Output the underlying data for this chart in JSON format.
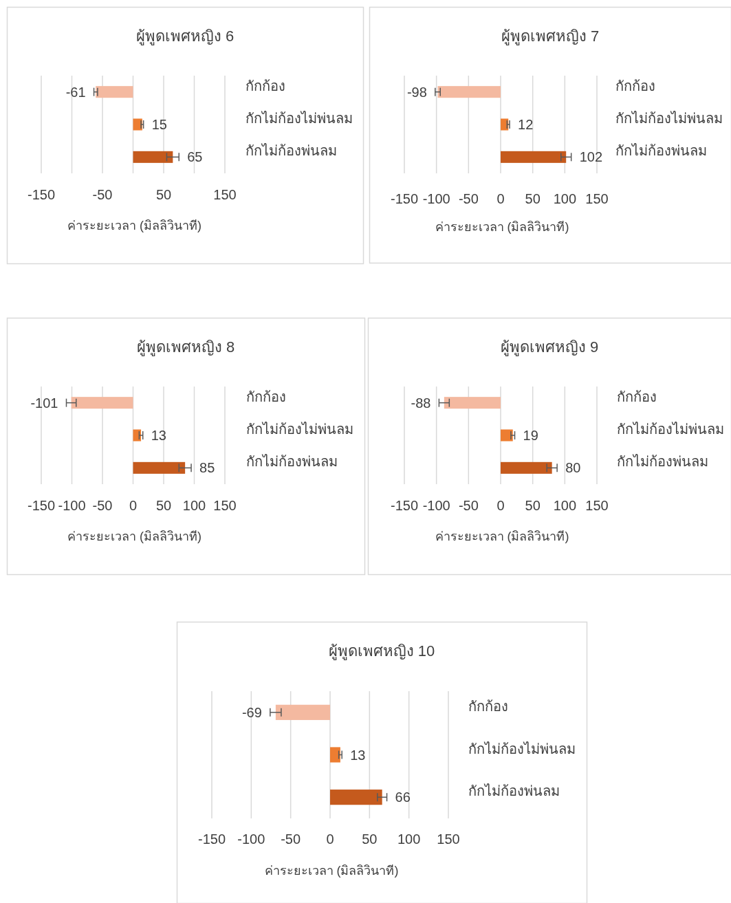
{
  "chart_data": [
    {
      "type": "bar",
      "orientation": "horizontal",
      "title": "ผู้พูดเพศหญิง 6",
      "xlabel": "ค่าระยะเวลา (มิลลิวินาที)",
      "categories": [
        "กักก้อง",
        "กักไม่ก้องไม่พ่นลม",
        "กักไม่ก้องพ่นลม"
      ],
      "values": [
        -61,
        15,
        65
      ],
      "errors": [
        3,
        2,
        10
      ],
      "colors": [
        "#f4b9a0",
        "#ed7d31",
        "#c55a1d"
      ],
      "xlim": [
        -150,
        150
      ],
      "xticks": [
        -150,
        {
          "value": -100,
          "label": null
        },
        -50,
        {
          "value": 0,
          "label": null
        },
        50,
        {
          "value": 100,
          "label": null
        },
        150
      ],
      "grid": "x",
      "data_labels": true
    },
    {
      "type": "bar",
      "orientation": "horizontal",
      "title": "ผู้พูดเพศหญิง 7",
      "xlabel": "ค่าระยะเวลา (มิลลิวินาที)",
      "categories": [
        "กักก้อง",
        "กักไม่ก้องไม่พ่นลม",
        "กักไม่ก้องพ่นลม"
      ],
      "values": [
        -98,
        12,
        102
      ],
      "errors": [
        4,
        2,
        8
      ],
      "colors": [
        "#f4b9a0",
        "#ed7d31",
        "#c55a1d"
      ],
      "xlim": [
        -150,
        150
      ],
      "xticks": [
        -150,
        -100,
        -50,
        0,
        50,
        100,
        150
      ],
      "grid": "x",
      "data_labels": true
    },
    {
      "type": "bar",
      "orientation": "horizontal",
      "title": "ผู้พูดเพศหญิง 8",
      "xlabel": "ค่าระยะเวลา (มิลลิวินาที)",
      "categories": [
        "กักก้อง",
        "กักไม่ก้องไม่พ่นลม",
        "กักไม่ก้องพ่นลม"
      ],
      "values": [
        -101,
        13,
        85
      ],
      "errors": [
        8,
        3,
        10
      ],
      "colors": [
        "#f4b9a0",
        "#ed7d31",
        "#c55a1d"
      ],
      "xlim": [
        -150,
        150
      ],
      "xticks": [
        -150,
        -100,
        -50,
        0,
        50,
        100,
        150
      ],
      "grid": "x",
      "data_labels": true
    },
    {
      "type": "bar",
      "orientation": "horizontal",
      "title": "ผู้พูดเพศหญิง 9",
      "xlabel": "ค่าระยะเวลา (มิลลิวินาที)",
      "categories": [
        "กักก้อง",
        "กักไม่ก้องไม่พ่นลม",
        "กักไม่ก้องพ่นลม"
      ],
      "values": [
        -88,
        19,
        80
      ],
      "errors": [
        8,
        3,
        8
      ],
      "colors": [
        "#f4b9a0",
        "#ed7d31",
        "#c55a1d"
      ],
      "xlim": [
        -150,
        150
      ],
      "xticks": [
        -150,
        -100,
        -50,
        0,
        50,
        100,
        150
      ],
      "grid": "x",
      "data_labels": true
    },
    {
      "type": "bar",
      "orientation": "horizontal",
      "title": "ผู้พูดเพศหญิง 10",
      "xlabel": "ค่าระยะเวลา (มิลลิวินาที)",
      "categories": [
        "กักก้อง",
        "กักไม่ก้องไม่พ่นลม",
        "กักไม่ก้องพ่นลม"
      ],
      "values": [
        -69,
        13,
        66
      ],
      "errors": [
        7,
        2,
        6
      ],
      "colors": [
        "#f4b9a0",
        "#ed7d31",
        "#c55a1d"
      ],
      "xlim": [
        -150,
        150
      ],
      "xticks": [
        -150,
        -100,
        -50,
        0,
        50,
        100,
        150
      ],
      "grid": "x",
      "data_labels": true
    }
  ]
}
